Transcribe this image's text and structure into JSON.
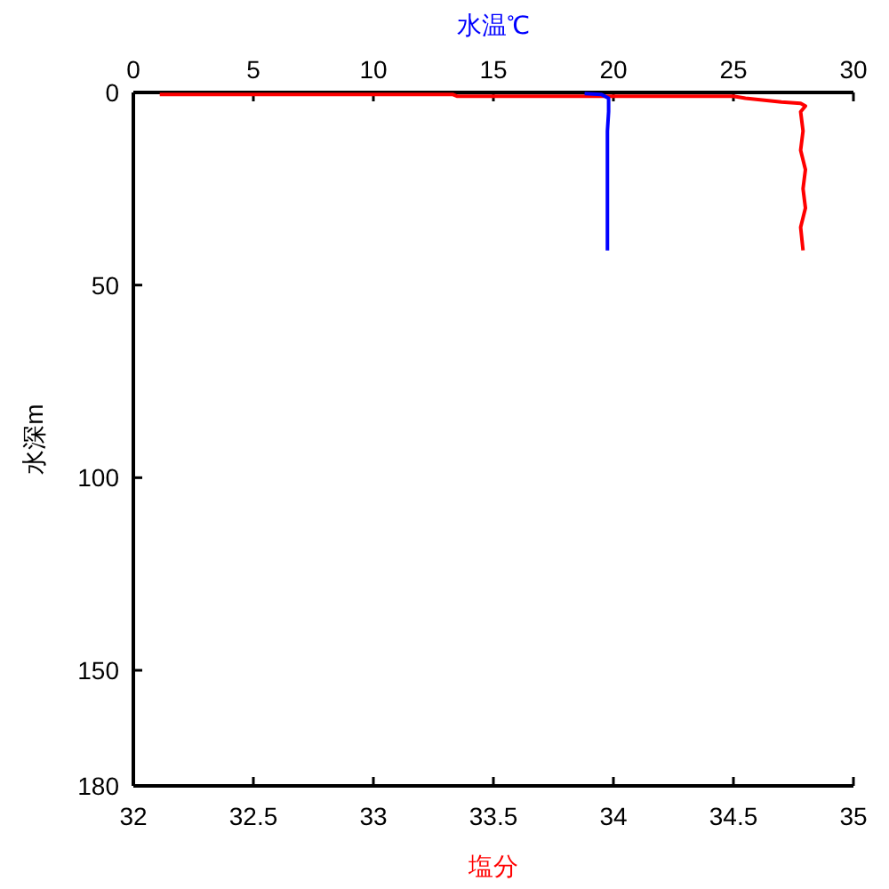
{
  "chart_data": {
    "type": "line",
    "xlabel": "塩分",
    "x2label": "水温℃",
    "ylabel": "水深m",
    "xlim": [
      32,
      35
    ],
    "xticks": [
      32,
      {
        "value": 32.5,
        "label": "32.5"
      },
      33,
      {
        "value": 33.5,
        "label": "33.5"
      },
      34,
      {
        "value": 34.5,
        "label": "34.5"
      },
      35
    ],
    "x2lim": [
      0,
      30
    ],
    "x2ticks": [
      0,
      5,
      10,
      15,
      20,
      25,
      30
    ],
    "ylim": [
      180,
      0
    ],
    "yticks": [
      0,
      50,
      100,
      150,
      180
    ],
    "series": [
      {
        "color": "#ff0000",
        "x": [
          32.11,
          33.33,
          33.35,
          34.5,
          34.55,
          34.7,
          34.78,
          34.8,
          34.78,
          34.79,
          34.78,
          34.8,
          34.79,
          34.8,
          34.78,
          34.79
        ],
        "values": [
          0.5,
          0.5,
          1,
          1,
          1.5,
          2.5,
          2.8,
          3.5,
          5,
          10,
          15,
          20,
          25,
          30,
          35,
          41
        ]
      },
      {
        "color": "#0000ff",
        "axis": "x2",
        "x": [
          18.8,
          19.5,
          19.8,
          19.8,
          19.75,
          19.75
        ],
        "values": [
          0.3,
          0.5,
          1.5,
          5,
          10,
          41
        ]
      }
    ]
  }
}
